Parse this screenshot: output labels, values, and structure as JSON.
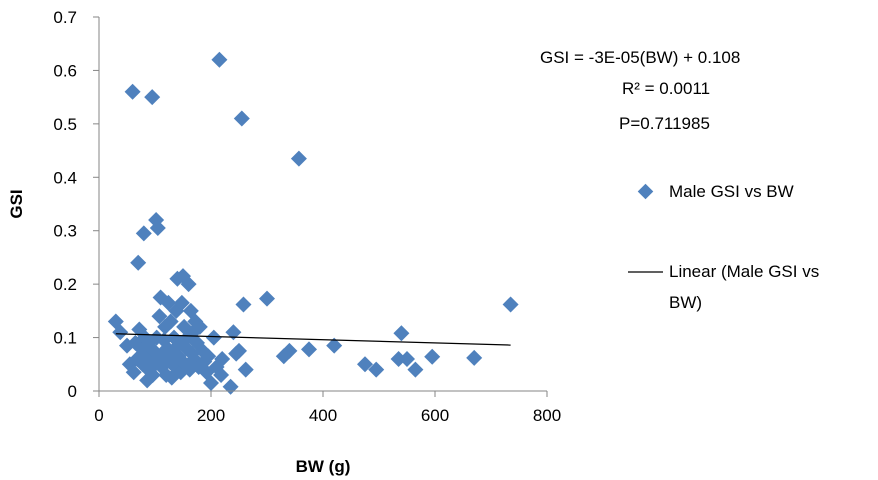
{
  "chart_data": {
    "type": "scatter",
    "title": "",
    "xlabel": "BW (g)",
    "ylabel": "GSI",
    "xlim": [
      0,
      800
    ],
    "ylim": [
      0,
      0.7
    ],
    "xticks": [
      "0",
      "200",
      "400",
      "600",
      "800"
    ],
    "yticks": [
      "0",
      "0.1",
      "0.2",
      "0.3",
      "0.4",
      "0.5",
      "0.6",
      "0.7"
    ],
    "grid": false,
    "legend_position": "right",
    "marker_color": "#4F81BD",
    "trendline_color": "#000000",
    "series": [
      {
        "name": "Male GSI vs BW",
        "points": [
          [
            30,
            0.13
          ],
          [
            38,
            0.11
          ],
          [
            50,
            0.085
          ],
          [
            55,
            0.05
          ],
          [
            60,
            0.56
          ],
          [
            62,
            0.035
          ],
          [
            65,
            0.09
          ],
          [
            68,
            0.06
          ],
          [
            70,
            0.24
          ],
          [
            72,
            0.115
          ],
          [
            75,
            0.08
          ],
          [
            78,
            0.05
          ],
          [
            80,
            0.295
          ],
          [
            82,
            0.1
          ],
          [
            84,
            0.07
          ],
          [
            86,
            0.02
          ],
          [
            88,
            0.04
          ],
          [
            90,
            0.09
          ],
          [
            92,
            0.06
          ],
          [
            95,
            0.55
          ],
          [
            96,
            0.03
          ],
          [
            98,
            0.075
          ],
          [
            100,
            0.05
          ],
          [
            102,
            0.32
          ],
          [
            103,
            0.1
          ],
          [
            105,
            0.305
          ],
          [
            106,
            0.06
          ],
          [
            108,
            0.14
          ],
          [
            110,
            0.175
          ],
          [
            112,
            0.045
          ],
          [
            114,
            0.07
          ],
          [
            116,
            0.095
          ],
          [
            118,
            0.12
          ],
          [
            120,
            0.03
          ],
          [
            122,
            0.08
          ],
          [
            124,
            0.165
          ],
          [
            126,
            0.055
          ],
          [
            128,
            0.13
          ],
          [
            130,
            0.025
          ],
          [
            132,
            0.075
          ],
          [
            134,
            0.1
          ],
          [
            136,
            0.045
          ],
          [
            138,
            0.15
          ],
          [
            140,
            0.21
          ],
          [
            142,
            0.065
          ],
          [
            144,
            0.09
          ],
          [
            146,
            0.035
          ],
          [
            148,
            0.165
          ],
          [
            150,
            0.215
          ],
          [
            152,
            0.12
          ],
          [
            154,
            0.05
          ],
          [
            156,
            0.08
          ],
          [
            158,
            0.1
          ],
          [
            160,
            0.2
          ],
          [
            162,
            0.04
          ],
          [
            164,
            0.15
          ],
          [
            166,
            0.07
          ],
          [
            168,
            0.11
          ],
          [
            170,
            0.06
          ],
          [
            172,
            0.13
          ],
          [
            175,
            0.09
          ],
          [
            178,
            0.045
          ],
          [
            180,
            0.12
          ],
          [
            185,
            0.075
          ],
          [
            188,
            0.055
          ],
          [
            192,
            0.035
          ],
          [
            195,
            0.065
          ],
          [
            200,
            0.015
          ],
          [
            205,
            0.1
          ],
          [
            210,
            0.045
          ],
          [
            215,
            0.62
          ],
          [
            218,
            0.03
          ],
          [
            220,
            0.06
          ],
          [
            235,
            0.008
          ],
          [
            240,
            0.11
          ],
          [
            245,
            0.07
          ],
          [
            250,
            0.075
          ],
          [
            255,
            0.51
          ],
          [
            258,
            0.162
          ],
          [
            262,
            0.04
          ],
          [
            300,
            0.173
          ],
          [
            330,
            0.065
          ],
          [
            340,
            0.075
          ],
          [
            357,
            0.435
          ],
          [
            375,
            0.078
          ],
          [
            420,
            0.085
          ],
          [
            475,
            0.05
          ],
          [
            495,
            0.04
          ],
          [
            535,
            0.06
          ],
          [
            540,
            0.108
          ],
          [
            550,
            0.06
          ],
          [
            565,
            0.04
          ],
          [
            595,
            0.064
          ],
          [
            670,
            0.062
          ],
          [
            735,
            0.162
          ]
        ]
      }
    ],
    "trendline": {
      "name": "Linear (Male GSI vs BW)",
      "slope": -3e-05,
      "intercept": 0.108,
      "x_range": [
        30,
        735
      ]
    },
    "annotations": [
      "GSI = -3E-05(BW) + 0.108",
      "R² = 0.0011",
      "P=0.711985"
    ],
    "legend": [
      "Male GSI vs BW",
      "Linear (Male GSI vs",
      "BW)"
    ]
  }
}
